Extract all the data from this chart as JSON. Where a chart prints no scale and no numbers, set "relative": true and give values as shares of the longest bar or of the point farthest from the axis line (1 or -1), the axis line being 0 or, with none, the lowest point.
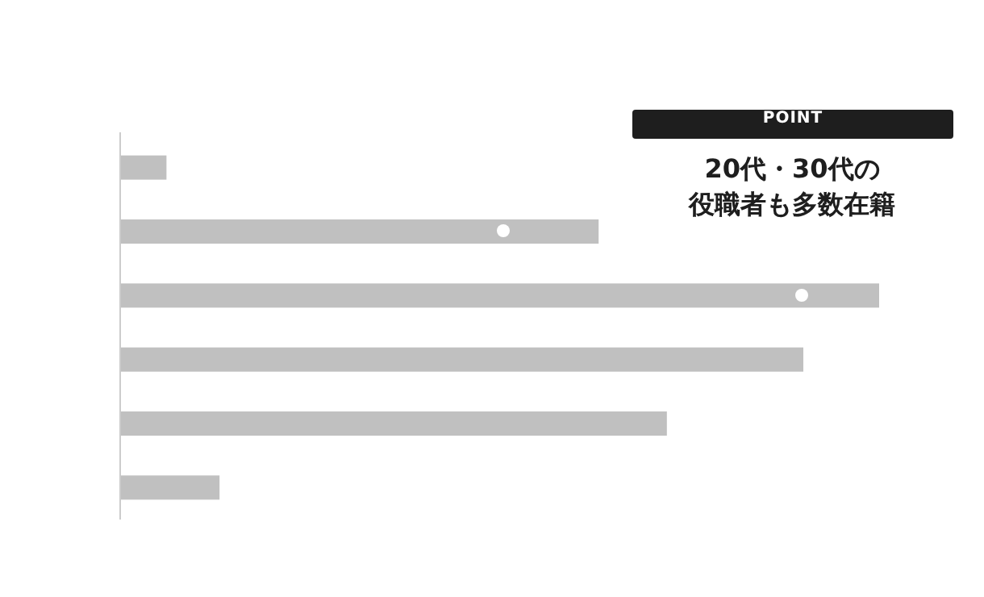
{
  "chart_data": {
    "type": "bar",
    "orientation": "horizontal",
    "relative": true,
    "categories": [
      null,
      null,
      null,
      null,
      null,
      null
    ],
    "values": [
      0.06,
      0.63,
      1,
      0.9,
      0.72,
      0.13
    ],
    "color": "#c0c0c0",
    "annotations": [
      "POINT",
      "20代・30代の",
      "役職者も多数在籍"
    ]
  }
}
